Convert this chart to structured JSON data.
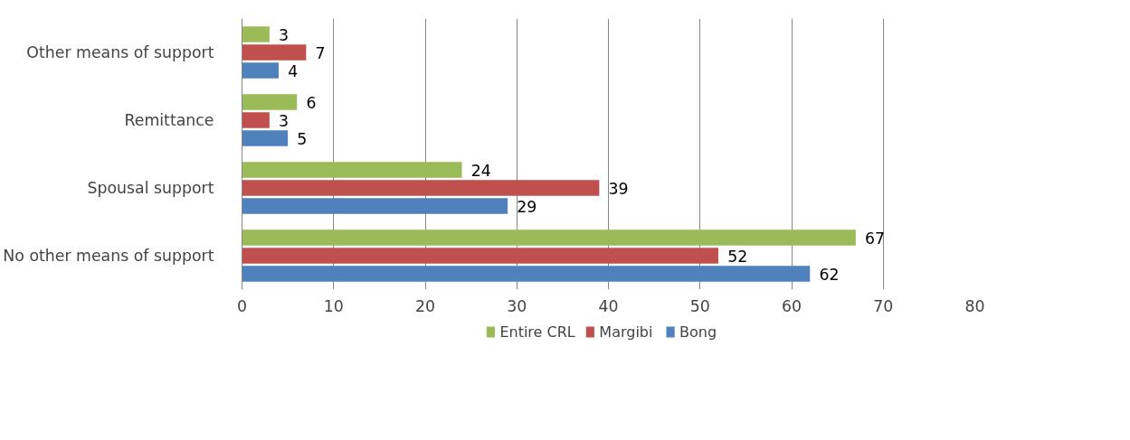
{
  "chart_data": {
    "type": "bar",
    "orientation": "horizontal",
    "categories": [
      "Other means of support",
      "Remittance",
      "Spousal support",
      "No other means of support"
    ],
    "series": [
      {
        "name": "Entire CRL",
        "color": "#9bbb59",
        "values": [
          3,
          6,
          24,
          67
        ]
      },
      {
        "name": "Margibi",
        "color": "#c0504d",
        "values": [
          7,
          3,
          39,
          52
        ]
      },
      {
        "name": "Bong",
        "color": "#4f81bd",
        "values": [
          4,
          5,
          29,
          62
        ]
      }
    ],
    "xlim": [
      0,
      80
    ],
    "xticks": [
      0,
      10,
      20,
      30,
      40,
      50,
      60,
      70,
      80
    ],
    "grid": "x",
    "legend": "bottom",
    "data_labels": true
  }
}
